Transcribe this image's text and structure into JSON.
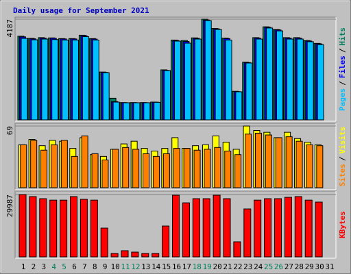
{
  "title": "Daily usage for September 2021",
  "legend_separator": "/",
  "chart_data": [
    {
      "type": "bar",
      "ylim": [
        0,
        4187
      ],
      "yticks": [
        4187
      ],
      "series": [
        {
          "name": "Hits",
          "color": "#00805c",
          "values": [
            3480,
            3390,
            3420,
            3410,
            3380,
            3380,
            3520,
            3380,
            1990,
            900,
            720,
            720,
            720,
            740,
            2080,
            3320,
            3300,
            3410,
            4187,
            3800,
            3400,
            1190,
            2400,
            3420,
            3870,
            3760,
            3420,
            3420,
            3300,
            3180,
            null
          ]
        },
        {
          "name": "Files",
          "color": "#0000ff",
          "values": [
            3450,
            3370,
            3400,
            3395,
            3365,
            3365,
            3500,
            3360,
            1975,
            760,
            715,
            715,
            715,
            735,
            2060,
            3300,
            3260,
            3390,
            4150,
            3780,
            3380,
            1175,
            2380,
            3400,
            3850,
            3740,
            3400,
            3400,
            3280,
            3160,
            null
          ]
        },
        {
          "name": "Pages",
          "color": "#00c0ff",
          "values": [
            3389,
            3330,
            3360,
            3340,
            3320,
            3320,
            3460,
            3320,
            1965,
            740,
            712,
            712,
            712,
            730,
            2050,
            3275,
            3190,
            3360,
            4130,
            3760,
            3320,
            1168,
            2364,
            3360,
            3820,
            3700,
            3360,
            3360,
            3250,
            3130,
            null
          ]
        }
      ]
    },
    {
      "type": "bar",
      "ylim": [
        0,
        69
      ],
      "yticks": [
        69
      ],
      "series": [
        {
          "name": "Visits",
          "color": "#ffff00",
          "values": [
            48,
            54,
            47,
            53,
            52,
            44,
            56,
            37,
            35,
            43,
            49,
            52,
            44,
            41,
            44,
            56,
            44,
            47,
            48,
            58,
            51,
            43,
            69,
            64,
            62,
            56,
            62,
            55,
            51,
            48,
            null
          ]
        },
        {
          "name": "Sites",
          "color": "#ff8000",
          "values": [
            48,
            53,
            42,
            48,
            53,
            35,
            58,
            38,
            31,
            43,
            45,
            43,
            38,
            35,
            38,
            44,
            44,
            42,
            43,
            45,
            41,
            37,
            60,
            61,
            59,
            56,
            57,
            52,
            48,
            47,
            null
          ]
        }
      ]
    },
    {
      "type": "bar",
      "ylim": [
        0,
        29987
      ],
      "yticks": [
        29987
      ],
      "categories": [
        "1",
        "2",
        "3",
        "4",
        "5",
        "6",
        "7",
        "8",
        "9",
        "10",
        "11",
        "12",
        "13",
        "14",
        "15",
        "16",
        "17",
        "18",
        "19",
        "20",
        "21",
        "22",
        "23",
        "24",
        "25",
        "26",
        "27",
        "28",
        "29",
        "30",
        "31"
      ],
      "label_colors": [
        "#000000",
        "#000000",
        "#000000",
        "#00805c",
        "#00805c",
        "#000000",
        "#000000",
        "#000000",
        "#000000",
        "#000000",
        "#00805c",
        "#00805c",
        "#000000",
        "#000000",
        "#000000",
        "#000000",
        "#000000",
        "#00805c",
        "#00805c",
        "#000000",
        "#000000",
        "#000000",
        "#000000",
        "#000000",
        "#00805c",
        "#00805c",
        "#000000",
        "#000000",
        "#000000",
        "#000000",
        "#000000"
      ],
      "series": [
        {
          "name": "KBytes",
          "color": "#ff0000",
          "values": [
            29987,
            29000,
            28000,
            27300,
            27300,
            29000,
            27700,
            27300,
            13840,
            1650,
            2970,
            2300,
            1650,
            1650,
            14830,
            29650,
            26000,
            28000,
            28000,
            29650,
            28000,
            7250,
            23060,
            27300,
            28000,
            28000,
            28660,
            29000,
            27300,
            26360,
            null
          ]
        }
      ]
    }
  ]
}
